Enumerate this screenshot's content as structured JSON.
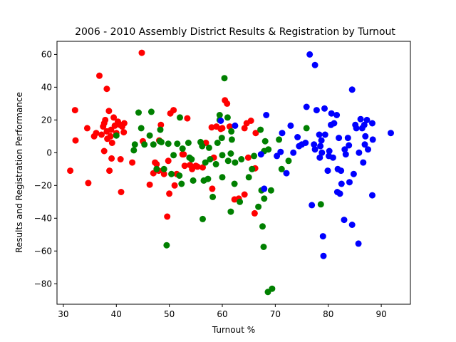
{
  "chart_data": {
    "type": "scatter",
    "title": "2006 - 2010 Assembly District Results & Registration by Turnout",
    "xlabel": "Turnout %",
    "ylabel": "Results and Registration Performance",
    "xlim": [
      28.8,
      95.5
    ],
    "ylim": [
      -92.5,
      68
    ],
    "x_ticks": [
      30,
      40,
      50,
      60,
      70,
      80,
      90
    ],
    "y_ticks": [
      -80,
      -60,
      -40,
      -20,
      0,
      20,
      40,
      60
    ],
    "y_tick_labels": [
      "−80",
      "−60",
      "−40",
      "−20",
      "0",
      "20",
      "40",
      "60"
    ],
    "grid": false,
    "legend": "none",
    "series": [
      {
        "color": "#ff0000",
        "points": [
          [
            31.3,
            -11
          ],
          [
            32.2,
            26
          ],
          [
            32.3,
            7.5
          ],
          [
            34.5,
            15
          ],
          [
            34.7,
            -18.5
          ],
          [
            35.8,
            10
          ],
          [
            36.2,
            12
          ],
          [
            36.8,
            47
          ],
          [
            37.2,
            11
          ],
          [
            37.5,
            16
          ],
          [
            37.7,
            18
          ],
          [
            37.7,
            1
          ],
          [
            37.9,
            20
          ],
          [
            38.2,
            13
          ],
          [
            38.2,
            39
          ],
          [
            38.3,
            8.5
          ],
          [
            38.6,
            25.5
          ],
          [
            38.7,
            -11
          ],
          [
            38.9,
            10
          ],
          [
            39.0,
            14
          ],
          [
            39.1,
            -3.5
          ],
          [
            39.2,
            6
          ],
          [
            39.5,
            21.5
          ],
          [
            39.7,
            16.5
          ],
          [
            40.0,
            12
          ],
          [
            40.3,
            19
          ],
          [
            40.7,
            17
          ],
          [
            40.8,
            -4
          ],
          [
            40.9,
            -24
          ],
          [
            41.1,
            16
          ],
          [
            41.4,
            12.5
          ],
          [
            41.5,
            18
          ],
          [
            43.0,
            -6
          ],
          [
            44.8,
            61
          ],
          [
            45.0,
            7
          ],
          [
            46.3,
            -19.5
          ],
          [
            47.0,
            -12.5
          ],
          [
            47.3,
            -6
          ],
          [
            47.6,
            -7
          ],
          [
            48.0,
            -11
          ],
          [
            48.1,
            7.5
          ],
          [
            48.4,
            17
          ],
          [
            49.0,
            -13
          ],
          [
            49.6,
            -39
          ],
          [
            49.8,
            -5
          ],
          [
            50.0,
            -25
          ],
          [
            50.2,
            24
          ],
          [
            50.8,
            26
          ],
          [
            51.0,
            -20
          ],
          [
            51.4,
            -13
          ],
          [
            52.5,
            -1
          ],
          [
            52.7,
            -1
          ],
          [
            52.9,
            -8
          ],
          [
            53.4,
            21
          ],
          [
            53.9,
            -7.5
          ],
          [
            54.3,
            -10
          ],
          [
            55.0,
            -8
          ],
          [
            55.3,
            -8.5
          ],
          [
            56.3,
            -9
          ],
          [
            56.9,
            6
          ],
          [
            58.0,
            15.5
          ],
          [
            58.1,
            -22
          ],
          [
            58.4,
            -3
          ],
          [
            58.9,
            16
          ],
          [
            59.7,
            14.5
          ],
          [
            60.0,
            15
          ],
          [
            60.5,
            32
          ],
          [
            60.9,
            30
          ],
          [
            61.4,
            16
          ],
          [
            62.3,
            -28.5
          ],
          [
            63.1,
            -28
          ],
          [
            64.2,
            -25.5
          ],
          [
            64.2,
            15
          ],
          [
            64.6,
            18
          ],
          [
            64.9,
            -3
          ],
          [
            65.4,
            19.5
          ],
          [
            66.1,
            -37
          ],
          [
            66.2,
            -9.5
          ],
          [
            66.3,
            12
          ]
        ]
      },
      {
        "color": "#008000",
        "points": [
          [
            40.0,
            10.5
          ],
          [
            43.3,
            1.5
          ],
          [
            43.5,
            5
          ],
          [
            44.2,
            24.5
          ],
          [
            44.7,
            15
          ],
          [
            45.3,
            5
          ],
          [
            46.3,
            10.5
          ],
          [
            46.6,
            25
          ],
          [
            47.0,
            5
          ],
          [
            47.6,
            -10
          ],
          [
            48.2,
            7
          ],
          [
            48.3,
            14
          ],
          [
            48.5,
            6.5
          ],
          [
            49.0,
            -10
          ],
          [
            49.5,
            -56.5
          ],
          [
            49.8,
            5.5
          ],
          [
            50.4,
            -13
          ],
          [
            50.8,
            -1.5
          ],
          [
            51.5,
            5.5
          ],
          [
            51.9,
            -14
          ],
          [
            52.0,
            21.5
          ],
          [
            52.3,
            -19
          ],
          [
            52.5,
            2.5
          ],
          [
            53.6,
            6
          ],
          [
            53.8,
            -3
          ],
          [
            54.2,
            -4
          ],
          [
            54.5,
            -17
          ],
          [
            55.9,
            6.5
          ],
          [
            56.2,
            4
          ],
          [
            56.3,
            -40.5
          ],
          [
            56.5,
            -17
          ],
          [
            56.8,
            -6
          ],
          [
            57.3,
            -16
          ],
          [
            57.5,
            3
          ],
          [
            57.7,
            -4
          ],
          [
            58.2,
            -27
          ],
          [
            58.8,
            -7
          ],
          [
            59.1,
            6
          ],
          [
            59.5,
            20
          ],
          [
            59.5,
            23
          ],
          [
            59.9,
            9
          ],
          [
            60.0,
            -15
          ],
          [
            60.0,
            -1.5
          ],
          [
            60.4,
            45.5
          ],
          [
            61.0,
            21.5
          ],
          [
            61.1,
            -5
          ],
          [
            61.6,
            -36
          ],
          [
            61.6,
            -0.5
          ],
          [
            61.7,
            13
          ],
          [
            61.8,
            8
          ],
          [
            62.3,
            -19
          ],
          [
            62.4,
            -6
          ],
          [
            63.3,
            -30
          ],
          [
            63.6,
            -4
          ],
          [
            65.0,
            -15
          ],
          [
            65.6,
            -10
          ],
          [
            66.0,
            -2
          ],
          [
            66.8,
            -33
          ],
          [
            67.2,
            14
          ],
          [
            67.4,
            -23
          ],
          [
            67.6,
            -45
          ],
          [
            67.8,
            -57.5
          ],
          [
            67.9,
            1
          ],
          [
            67.9,
            -28
          ],
          [
            68.1,
            7
          ],
          [
            68.6,
            -85
          ],
          [
            68.7,
            2
          ],
          [
            69.2,
            -23
          ],
          [
            69.4,
            -83
          ],
          [
            70.7,
            8
          ],
          [
            71.2,
            -10
          ],
          [
            72.5,
            -5
          ],
          [
            75.9,
            15
          ],
          [
            78.6,
            -31.5
          ]
        ]
      },
      {
        "color": "#0000ff",
        "points": [
          [
            59.7,
            19.5
          ],
          [
            62.4,
            16.5
          ],
          [
            67.3,
            -1
          ],
          [
            67.9,
            -22
          ],
          [
            68.3,
            23
          ],
          [
            70.3,
            -2
          ],
          [
            71.0,
            0.5
          ],
          [
            71.3,
            12
          ],
          [
            72.1,
            -12.5
          ],
          [
            72.9,
            16.5
          ],
          [
            73.4,
            0
          ],
          [
            74.2,
            9.5
          ],
          [
            74.5,
            4
          ],
          [
            75.0,
            5
          ],
          [
            75.7,
            6
          ],
          [
            75.9,
            28
          ],
          [
            76.5,
            60
          ],
          [
            76.9,
            -32
          ],
          [
            77.3,
            5
          ],
          [
            77.5,
            2
          ],
          [
            77.5,
            53.5
          ],
          [
            77.8,
            26
          ],
          [
            78.3,
            11
          ],
          [
            78.4,
            -3
          ],
          [
            78.5,
            4
          ],
          [
            78.7,
            7.5
          ],
          [
            78.8,
            0
          ],
          [
            79.0,
            -51
          ],
          [
            79.1,
            -63
          ],
          [
            79.3,
            27
          ],
          [
            79.4,
            11
          ],
          [
            79.9,
            -11
          ],
          [
            80.1,
            -2
          ],
          [
            80.2,
            1
          ],
          [
            80.5,
            17
          ],
          [
            80.6,
            24
          ],
          [
            80.9,
            -3
          ],
          [
            81.1,
            18
          ],
          [
            81.6,
            23
          ],
          [
            81.7,
            -24
          ],
          [
            81.8,
            -10
          ],
          [
            82.0,
            9
          ],
          [
            82.2,
            -25
          ],
          [
            82.4,
            -11
          ],
          [
            82.5,
            -19
          ],
          [
            83.0,
            -41
          ],
          [
            83.1,
            2
          ],
          [
            83.3,
            -1
          ],
          [
            83.7,
            9
          ],
          [
            83.9,
            4.5
          ],
          [
            84.0,
            -18
          ],
          [
            84.5,
            -44
          ],
          [
            84.5,
            38.5
          ],
          [
            84.8,
            -13
          ],
          [
            85.1,
            17
          ],
          [
            85.3,
            15
          ],
          [
            85.7,
            -55.5
          ],
          [
            85.8,
            0
          ],
          [
            86.1,
            20.5
          ],
          [
            86.4,
            15
          ],
          [
            86.6,
            -6
          ],
          [
            86.8,
            17
          ],
          [
            86.9,
            5
          ],
          [
            87.0,
            10
          ],
          [
            87.3,
            20
          ],
          [
            87.5,
            2
          ],
          [
            88.3,
            -26
          ],
          [
            88.3,
            18
          ],
          [
            88.4,
            8
          ],
          [
            91.8,
            12
          ]
        ]
      }
    ]
  }
}
